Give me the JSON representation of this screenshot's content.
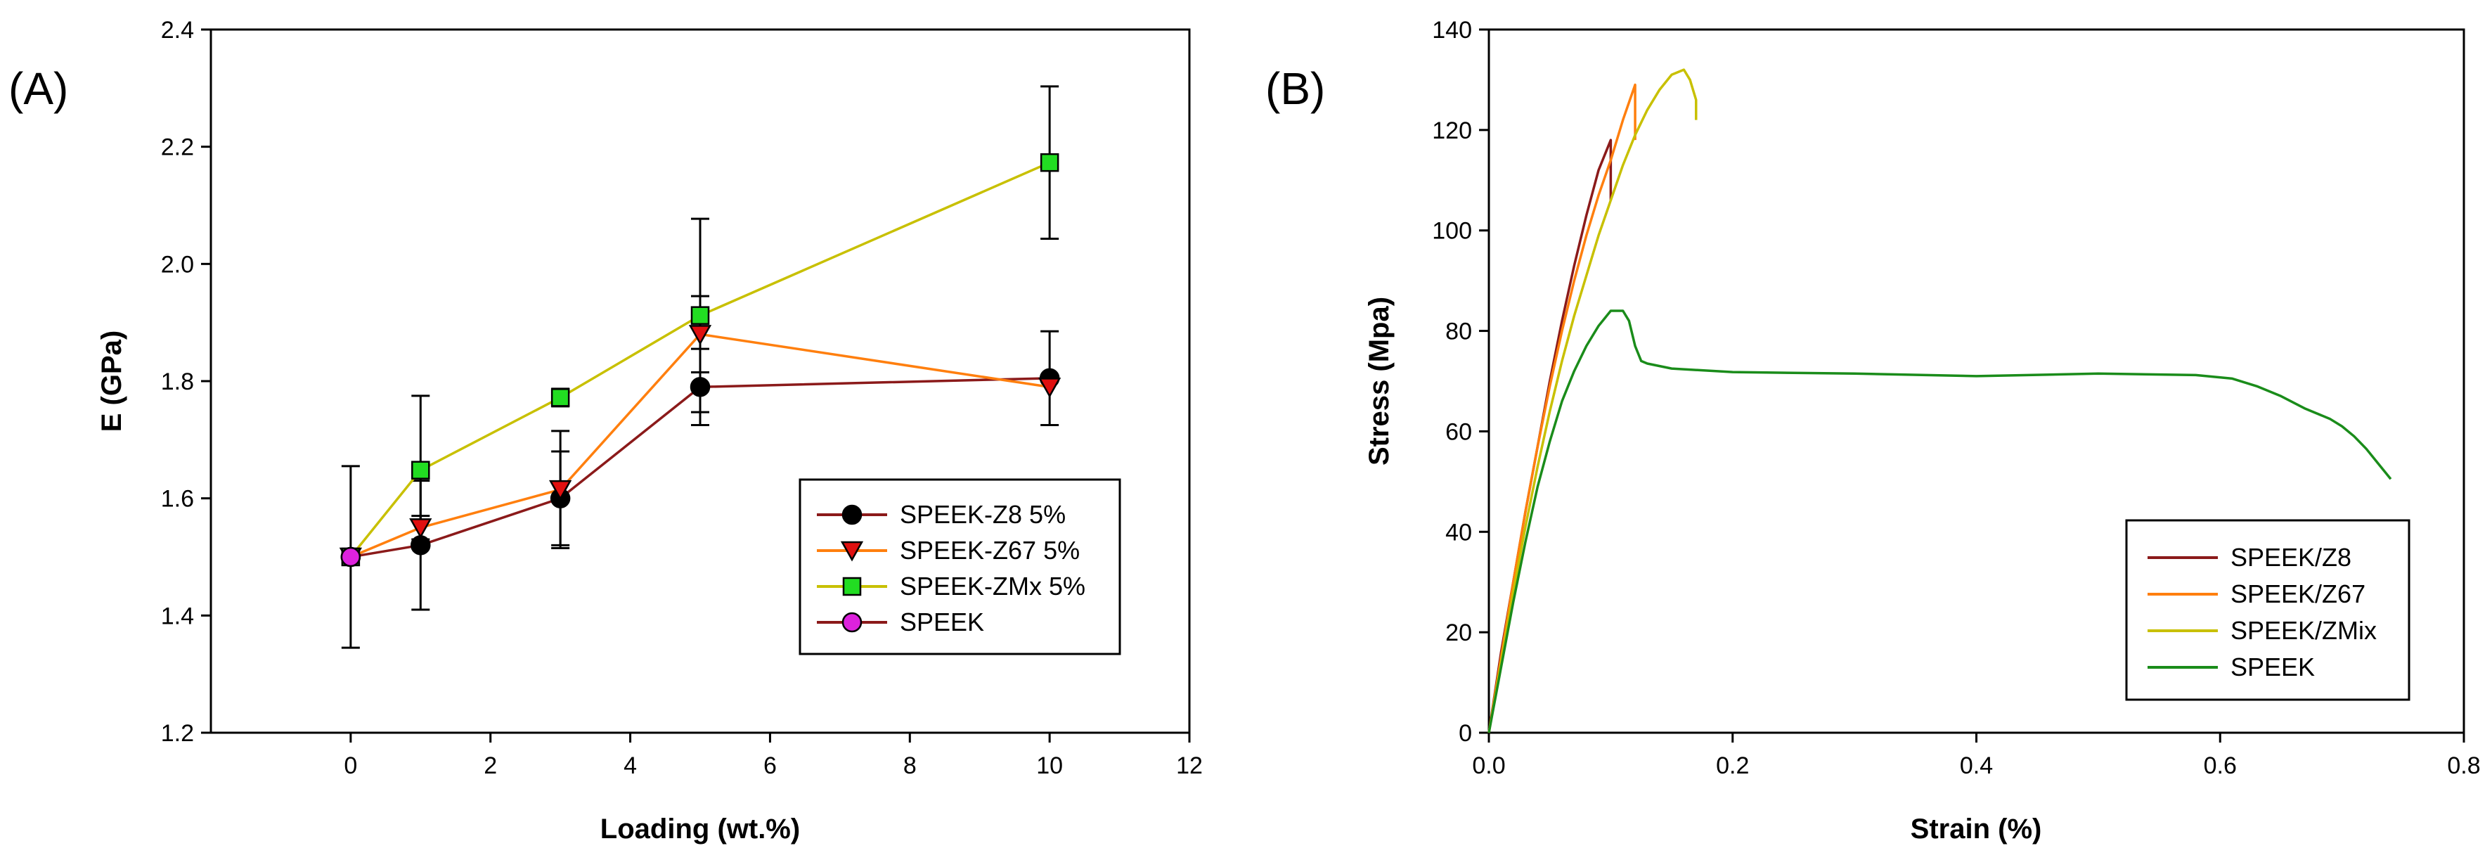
{
  "panel_labels": [
    "(A)",
    "(B)"
  ],
  "chart_data": [
    {
      "type": "line",
      "title": "",
      "xlabel": "Loading (wt.%)",
      "ylabel": "E (GPa)",
      "xlim": [
        -2,
        12
      ],
      "ylim": [
        1.2,
        2.4
      ],
      "xticks": [
        0,
        2,
        4,
        6,
        8,
        10,
        12
      ],
      "yticks": [
        1.2,
        1.4,
        1.6,
        1.8,
        2.0,
        2.2,
        2.4
      ],
      "xtick_labels": [
        "0",
        "2",
        "4",
        "6",
        "8",
        "10",
        "12"
      ],
      "ytick_labels": [
        "1.2",
        "1.4",
        "1.6",
        "1.8",
        "2.0",
        "2.2",
        "2.4"
      ],
      "legend_position": "right-middle",
      "series": [
        {
          "name": "SPEEK-Z8 5%",
          "marker": "circle",
          "color": "#8b1a1a",
          "marker_color": "#000000",
          "x": [
            0,
            1,
            3,
            5,
            10
          ],
          "y": [
            1.5,
            1.52,
            1.6,
            1.79,
            1.805
          ],
          "err": [
            0,
            0.11,
            0.08,
            0.065,
            0.08
          ]
        },
        {
          "name": "SPEEK-Z67 5%",
          "marker": "triangle-down",
          "color": "#ff7f0e",
          "marker_color": "#e01010",
          "x": [
            0,
            1,
            3,
            5,
            10
          ],
          "y": [
            1.5,
            1.55,
            1.615,
            1.88,
            1.79
          ],
          "err": [
            0,
            0.02,
            0.1,
            0.065,
            0
          ]
        },
        {
          "name": "SPEEK-ZMx 5%",
          "marker": "square",
          "color": "#c8c000",
          "marker_color": "#22dd22",
          "x": [
            0,
            1,
            3,
            5,
            10
          ],
          "y": [
            1.5,
            1.648,
            1.772,
            1.912,
            2.173
          ],
          "err": [
            0,
            0.127,
            0.015,
            0.165,
            0.13
          ]
        },
        {
          "name": "SPEEK",
          "marker": "circle",
          "color": "#8b1a1a",
          "marker_color": "#dd22dd",
          "x": [
            0
          ],
          "y": [
            1.5
          ],
          "err": [
            0.155
          ]
        }
      ]
    },
    {
      "type": "line",
      "title": "",
      "xlabel": "Strain (%)",
      "ylabel": "Stress (Mpa)",
      "xlim": [
        0,
        0.8
      ],
      "ylim": [
        0,
        140
      ],
      "xticks": [
        0,
        0.2,
        0.4,
        0.6,
        0.8
      ],
      "yticks": [
        0,
        20,
        40,
        60,
        80,
        100,
        120,
        140
      ],
      "xtick_labels": [
        "0.0",
        "0.2",
        "0.4",
        "0.6",
        "0.8"
      ],
      "ytick_labels": [
        "0",
        "20",
        "40",
        "60",
        "80",
        "100",
        "120",
        "140"
      ],
      "legend_position": "bottom-right",
      "series": [
        {
          "name": "SPEEK/Z8",
          "color": "#8b1a1a",
          "x": [
            0,
            0.01,
            0.02,
            0.03,
            0.04,
            0.05,
            0.06,
            0.07,
            0.08,
            0.09,
            0.1,
            0.1,
            0.1
          ],
          "y": [
            0,
            16,
            30,
            44,
            57,
            70,
            82,
            93,
            103,
            112,
            118,
            112,
            106
          ]
        },
        {
          "name": "SPEEK/Z67",
          "color": "#ff7f0e",
          "x": [
            0,
            0.01,
            0.02,
            0.03,
            0.04,
            0.05,
            0.06,
            0.07,
            0.08,
            0.09,
            0.1,
            0.11,
            0.12,
            0.12,
            0.12
          ],
          "y": [
            0,
            15,
            30,
            44,
            57,
            69,
            80,
            90,
            99,
            107,
            114,
            122,
            129,
            125,
            118
          ]
        },
        {
          "name": "SPEEK/ZMix",
          "color": "#c8c000",
          "x": [
            0,
            0.01,
            0.02,
            0.03,
            0.04,
            0.05,
            0.06,
            0.07,
            0.08,
            0.09,
            0.1,
            0.11,
            0.12,
            0.13,
            0.14,
            0.15,
            0.16,
            0.165,
            0.17,
            0.17
          ],
          "y": [
            0,
            14,
            28,
            41,
            53,
            64,
            74,
            83,
            91,
            99,
            106,
            113,
            119,
            124,
            128,
            131,
            132,
            130,
            126,
            122
          ]
        },
        {
          "name": "SPEEK",
          "color": "#1a8c1a",
          "x": [
            0,
            0.01,
            0.02,
            0.03,
            0.04,
            0.05,
            0.06,
            0.07,
            0.08,
            0.09,
            0.1,
            0.11,
            0.115,
            0.12,
            0.125,
            0.13,
            0.15,
            0.2,
            0.3,
            0.4,
            0.5,
            0.58,
            0.61,
            0.63,
            0.65,
            0.67,
            0.69,
            0.7,
            0.71,
            0.72,
            0.73,
            0.74
          ],
          "y": [
            0,
            13,
            26,
            38,
            49,
            58,
            66,
            72,
            77,
            81,
            84,
            84,
            82,
            77,
            74,
            73.5,
            72.5,
            71.8,
            71.5,
            71,
            71.5,
            71.2,
            70.5,
            69,
            67,
            64.5,
            62.5,
            61,
            59,
            56.5,
            53.5,
            50.5
          ]
        }
      ]
    }
  ]
}
